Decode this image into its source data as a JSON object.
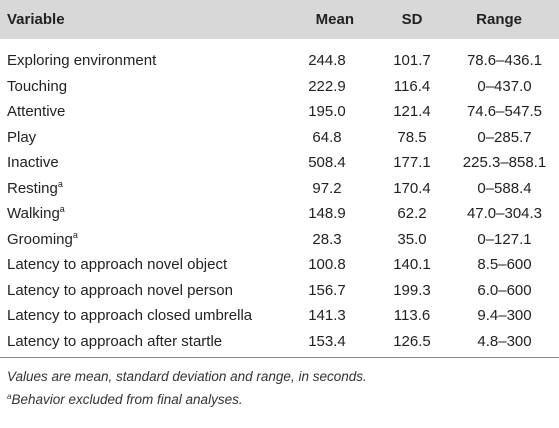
{
  "table": {
    "headers": {
      "variable": "Variable",
      "mean": "Mean",
      "sd": "SD",
      "range": "Range"
    },
    "rows": [
      {
        "variable": "Exploring environment",
        "sup": "",
        "mean": "244.8",
        "sd": "101.7",
        "range": "78.6–436.1"
      },
      {
        "variable": "Touching",
        "sup": "",
        "mean": "222.9",
        "sd": "116.4",
        "range": "0–437.0"
      },
      {
        "variable": "Attentive",
        "sup": "",
        "mean": "195.0",
        "sd": "121.4",
        "range": "74.6–547.5"
      },
      {
        "variable": "Play",
        "sup": "",
        "mean": "64.8",
        "sd": "78.5",
        "range": "0–285.7"
      },
      {
        "variable": "Inactive",
        "sup": "",
        "mean": "508.4",
        "sd": "177.1",
        "range": "225.3–858.1"
      },
      {
        "variable": "Resting",
        "sup": "a",
        "mean": "97.2",
        "sd": "170.4",
        "range": "0–588.4"
      },
      {
        "variable": "Walking",
        "sup": "a",
        "mean": "148.9",
        "sd": "62.2",
        "range": "47.0–304.3"
      },
      {
        "variable": "Grooming",
        "sup": "a",
        "mean": "28.3",
        "sd": "35.0",
        "range": "0–127.1"
      },
      {
        "variable": "Latency to approach novel object",
        "sup": "",
        "mean": "100.8",
        "sd": "140.1",
        "range": "8.5–600"
      },
      {
        "variable": "Latency to approach novel person",
        "sup": "",
        "mean": "156.7",
        "sd": "199.3",
        "range": "6.0–600"
      },
      {
        "variable": "Latency to approach closed umbrella",
        "sup": "",
        "mean": "141.3",
        "sd": "113.6",
        "range": "9.4–300"
      },
      {
        "variable": "Latency to approach after startle",
        "sup": "",
        "mean": "153.4",
        "sd": "126.5",
        "range": "4.8–300"
      }
    ]
  },
  "notes": {
    "line1": "Values are mean, standard deviation and range, in seconds.",
    "line2_sup": "a",
    "line2": "Behavior excluded from final analyses."
  },
  "colors": {
    "header_bg": "#d8d8d8",
    "rule": "#888888",
    "text": "#222222"
  }
}
